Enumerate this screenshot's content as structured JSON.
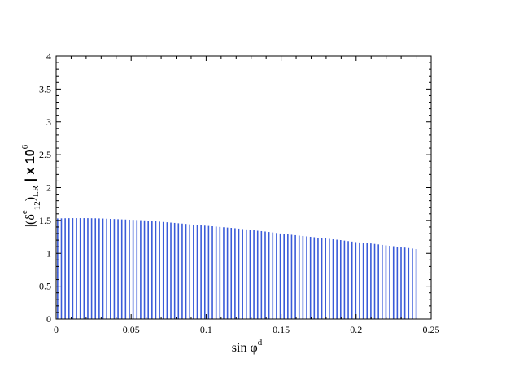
{
  "chart_data": {
    "type": "bar",
    "title": "",
    "xlabel": {
      "text": "sin φ",
      "sup": "d"
    },
    "ylabel": {
      "prefix": "|(",
      "delta": "δ",
      "bar": "‾",
      "sup_e": "e",
      "sub_12": "12",
      "close": ")",
      "sub_lr": "LR",
      "suffix": " | x 10",
      "exp": "6"
    },
    "xlim": [
      0,
      0.25
    ],
    "ylim": [
      0,
      4
    ],
    "xticks": [
      0,
      0.05,
      0.1,
      0.15,
      0.2,
      0.25
    ],
    "xtick_labels": [
      "0",
      "0.05",
      "0.1",
      "0.15",
      "0.2",
      "0.25"
    ],
    "yticks": [
      0,
      0.5,
      1,
      1.5,
      2,
      2.5,
      3,
      3.5,
      4
    ],
    "ytick_labels": [
      "0",
      "0.5",
      "1",
      "1.5",
      "2",
      "2.5",
      "3",
      "3.5",
      "4"
    ],
    "grid": false,
    "series_color": "#3a5bd9",
    "envelope_x": [
      0,
      0.01,
      0.02,
      0.03,
      0.04,
      0.05,
      0.06,
      0.07,
      0.08,
      0.09,
      0.1,
      0.11,
      0.12,
      0.13,
      0.14,
      0.15,
      0.16,
      0.17,
      0.18,
      0.19,
      0.2,
      0.21,
      0.22,
      0.23,
      0.24
    ],
    "envelope_y": [
      1.53,
      1.535,
      1.535,
      1.53,
      1.52,
      1.51,
      1.5,
      1.48,
      1.46,
      1.44,
      1.42,
      1.4,
      1.38,
      1.355,
      1.33,
      1.3,
      1.275,
      1.25,
      1.225,
      1.2,
      1.17,
      1.15,
      1.12,
      1.095,
      1.065
    ],
    "x_start": 0.001,
    "x_end": 0.24,
    "bar_count": 96
  }
}
